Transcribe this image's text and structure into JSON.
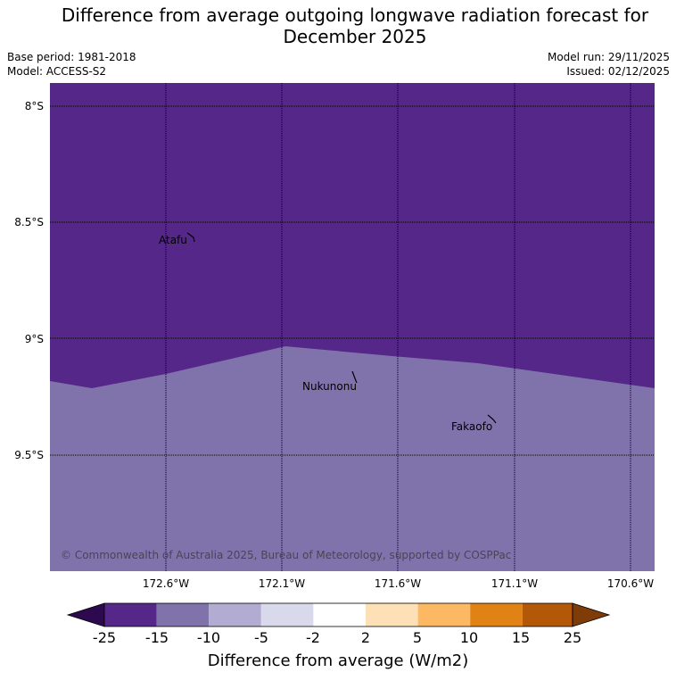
{
  "title_line1": "Difference from average outgoing longwave radiation forecast for",
  "title_line2": "December 2025",
  "base_period": "Base period: 1981-2018",
  "model": "Model: ACCESS-S2",
  "model_run": "Model run: 29/11/2025",
  "issued": "Issued: 02/12/2025",
  "copyright": "© Commonwealth of Australia 2025, Bureau of Meteorology, supported by COSPPac",
  "lat_labels": [
    "8°S",
    "8.5°S",
    "9°S",
    "9.5°S"
  ],
  "lon_labels": [
    "172.6°W",
    "172.1°W",
    "171.6°W",
    "171.1°W",
    "170.6°W"
  ],
  "places": [
    "Atafu",
    "Nukunonu",
    "Fakaofo"
  ],
  "colorbar": {
    "title": "Difference from average (W/m2)",
    "tick_labels": [
      "-25",
      "-15",
      "-10",
      "-5",
      "-2",
      "2",
      "5",
      "10",
      "15",
      "25"
    ],
    "colors": {
      "under": "#2d0a50",
      "bins": [
        "#542788",
        "#8073ac",
        "#b2abd2",
        "#d8daeb",
        "#ffffff",
        "#fee0b6",
        "#fdb863",
        "#e08214",
        "#b35806"
      ],
      "over": "#7f3b08"
    }
  },
  "map_colors": {
    "north_region": "#542788",
    "south_region": "#8073ac"
  }
}
